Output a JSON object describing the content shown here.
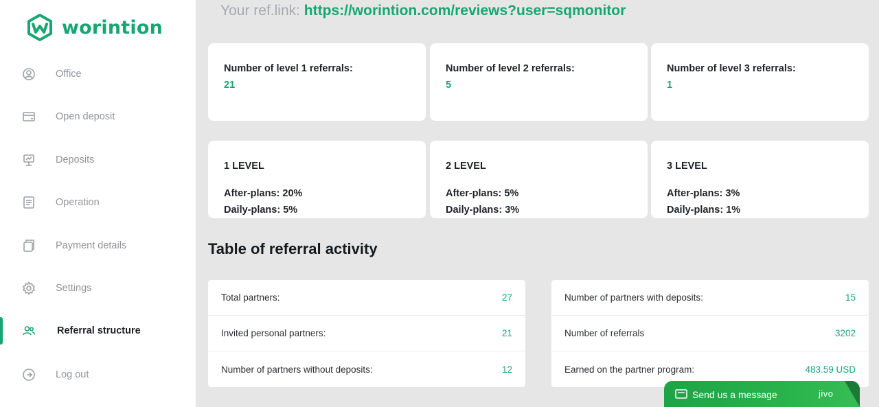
{
  "brand": {
    "name": "worintion"
  },
  "sidebar": {
    "items": [
      {
        "label": "Office",
        "icon": "user-circle-icon"
      },
      {
        "label": "Open deposit",
        "icon": "card-icon"
      },
      {
        "label": "Deposits",
        "icon": "presentation-icon"
      },
      {
        "label": "Operation",
        "icon": "document-icon"
      },
      {
        "label": "Payment details",
        "icon": "wallet-icon"
      },
      {
        "label": "Settings",
        "icon": "gear-icon"
      },
      {
        "label": "Referral structure",
        "icon": "users-icon",
        "active": true
      },
      {
        "label": "Log out",
        "icon": "logout-icon"
      }
    ]
  },
  "reflink": {
    "label": "Your ref.link:",
    "url": "https://worintion.com/reviews?user=sqmonitor"
  },
  "referral_counts": [
    {
      "title": "Number of level 1 referrals:",
      "value": "21"
    },
    {
      "title": "Number of level 2 referrals:",
      "value": "5"
    },
    {
      "title": "Number of level 3 referrals:",
      "value": "1"
    }
  ],
  "levels": [
    {
      "title": "1 LEVEL",
      "after_plans": "After-plans: 20%",
      "daily_plans": "Daily-plans: 5%"
    },
    {
      "title": "2 LEVEL",
      "after_plans": "After-plans: 5%",
      "daily_plans": "Daily-plans: 3%"
    },
    {
      "title": "3 LEVEL",
      "after_plans": "After-plans: 3%",
      "daily_plans": "Daily-plans: 1%"
    }
  ],
  "activity": {
    "title": "Table of referral activity",
    "left": [
      {
        "label": "Total partners:",
        "value": "27"
      },
      {
        "label": "Invited personal partners:",
        "value": "21"
      },
      {
        "label": "Number of partners without deposits:",
        "value": "12"
      }
    ],
    "right": [
      {
        "label": "Number of partners with deposits:",
        "value": "15"
      },
      {
        "label": "Number of referrals",
        "value": "3202"
      },
      {
        "label": "Earned on the partner program:",
        "value": "483.59 USD"
      }
    ]
  },
  "chat": {
    "label": "Send us a message",
    "brand": "jivo"
  },
  "colors": {
    "accent": "#17a673",
    "muted": "#8f959b",
    "background": "#e6e6e6"
  }
}
